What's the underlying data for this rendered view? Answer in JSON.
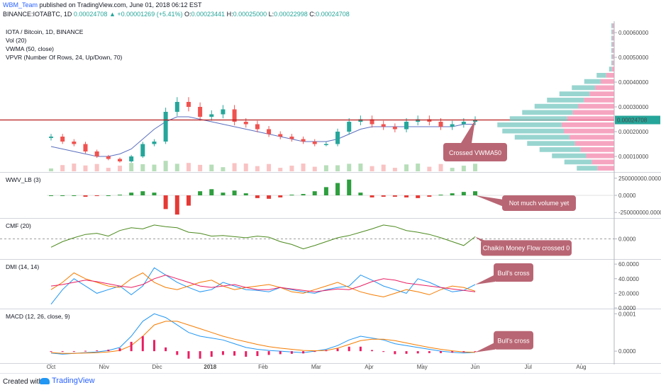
{
  "header": {
    "publisher": "WBM_Team",
    "published_text": "published on TradingView.com, June 01, 2018 06:12 EST",
    "symbol": "BINANCE:IOTABTC, 1D",
    "last_price": "0.00024708",
    "change_icon": "up-triangle-icon",
    "change": "+0.00001269 (+5.41%)",
    "open_label": "O:",
    "open": "0.00023441",
    "high_label": "H:",
    "high": "0.00025000",
    "low_label": "L:",
    "low": "0.00022998",
    "close_label": "C:",
    "close": "0.00024708"
  },
  "colors": {
    "up": "#26a69a",
    "down": "#ef5350",
    "vwma": "#5b6fbf",
    "vpvr_line": "#2e2eaa",
    "wwv_up": "#2e9e3e",
    "wwv_down": "#e53935",
    "cmf": "#4c8a1e",
    "dmi_plus": "#2196f3",
    "dmi_minus": "#f57c00",
    "adx": "#e91e63",
    "macd": "#2196f3",
    "signal": "#f57c00",
    "hist": "#e91e63",
    "callout": "#b96674",
    "price_line": "#b71c1c"
  },
  "chart_data": [
    {
      "type": "candlestick",
      "title": "IOTA / Bitcoin, 1D, BINANCE",
      "indicators": [
        "Vol (20)",
        "VWMA (50, close)",
        "VPVR (Number Of Rows, 24, Up/Down, 70)"
      ],
      "y_ticks": [
        "0.00060000",
        "0.00050000",
        "0.00040000",
        "0.00030000",
        "0.00020000",
        "0.00010000"
      ],
      "y_tick_values": [
        0.0006,
        0.0005,
        0.0004,
        0.0003,
        0.0002,
        0.0001
      ],
      "ylim": [
        4e-05,
        0.00064
      ],
      "last_price_label": "0.00024708",
      "last_price_value": 0.00024708,
      "x_labels": [
        "Oct",
        "Nov",
        "Dec",
        "2018",
        "Feb",
        "Mar",
        "Apr",
        "May",
        "Jun",
        "Jul",
        "Aug"
      ],
      "close_series": [
        0.00018,
        0.00016,
        0.00015,
        0.00012,
        0.0001,
        9e-05,
        8e-05,
        0.0001,
        0.00015,
        0.00016,
        0.00028,
        0.00032,
        0.0003,
        0.00026,
        0.00027,
        0.00029,
        0.00024,
        0.00023,
        0.00021,
        0.00019,
        0.00018,
        0.00017,
        0.00016,
        0.00015,
        0.00015,
        0.0002,
        0.00024,
        0.00025,
        0.00023,
        0.00022,
        0.00021,
        0.00024,
        0.00025,
        0.00024,
        0.00022,
        0.00023,
        0.00024,
        0.00024708
      ],
      "vwma_series": [
        0.00014,
        0.00013,
        0.00012,
        0.00011,
        0.0001,
        0.0001,
        0.00011,
        0.00013,
        0.00017,
        0.00021,
        0.00024,
        0.00026,
        0.00026,
        0.00025,
        0.00024,
        0.00023,
        0.00022,
        0.00021,
        0.0002,
        0.00019,
        0.00018,
        0.00017,
        0.00016,
        0.00016,
        0.00016,
        0.00017,
        0.00019,
        0.00021,
        0.00022,
        0.00022,
        0.00022,
        0.00022,
        0.00022,
        0.00022,
        0.00022,
        0.00022,
        0.00023,
        0.00023
      ],
      "annotation": "Crossed VWMA50"
    },
    {
      "type": "bar",
      "title": "WWV_LB (3)",
      "y_ticks": [
        "250000000.0000",
        "0.0000",
        "-250000000.0000"
      ],
      "y_tick_values": [
        250000000,
        0,
        -250000000
      ],
      "ylim": [
        -320000000,
        320000000
      ],
      "values": [
        0,
        0,
        0,
        -20000000,
        -10000000,
        0,
        10000000,
        40000000,
        60000000,
        40000000,
        -200000000,
        -280000000,
        -150000000,
        60000000,
        90000000,
        40000000,
        70000000,
        30000000,
        -40000000,
        -50000000,
        -30000000,
        10000000,
        20000000,
        60000000,
        120000000,
        180000000,
        230000000,
        40000000,
        -30000000,
        -20000000,
        -20000000,
        -30000000,
        -40000000,
        -20000000,
        10000000,
        30000000,
        50000000,
        60000000
      ],
      "annotation": "Not much volume yet"
    },
    {
      "type": "line",
      "title": "CMF (20)",
      "y_ticks": [
        "0.0000"
      ],
      "y_tick_values": [
        0
      ],
      "ylim": [
        -0.35,
        0.35
      ],
      "values": [
        -0.15,
        -0.05,
        0.02,
        0.08,
        0.1,
        0.05,
        0.15,
        0.2,
        0.18,
        0.25,
        0.22,
        0.2,
        0.12,
        0.1,
        0.05,
        0.06,
        0.04,
        0.02,
        0.05,
        0.03,
        -0.05,
        -0.1,
        -0.18,
        -0.12,
        -0.05,
        0.02,
        0.06,
        0.12,
        0.18,
        0.25,
        0.22,
        0.15,
        0.12,
        0.08,
        0.02,
        -0.05,
        -0.12,
        0.04
      ],
      "annotation": "Chaikin Money Flow crossed 0"
    },
    {
      "type": "line",
      "title": "DMI (14, 14)",
      "y_ticks": [
        "60.0000",
        "40.0000",
        "20.0000",
        "0.0000"
      ],
      "y_tick_values": [
        60,
        40,
        20,
        0
      ],
      "ylim": [
        0,
        65
      ],
      "series": [
        {
          "name": "+DI",
          "values": [
            5,
            25,
            40,
            30,
            20,
            25,
            30,
            18,
            30,
            55,
            45,
            35,
            28,
            22,
            25,
            35,
            30,
            25,
            24,
            22,
            28,
            25,
            22,
            20,
            25,
            28,
            30,
            45,
            38,
            30,
            25,
            20,
            40,
            35,
            28,
            22,
            24,
            32
          ]
        },
        {
          "name": "-DI",
          "values": [
            25,
            35,
            48,
            40,
            35,
            30,
            28,
            40,
            48,
            35,
            28,
            25,
            30,
            35,
            38,
            30,
            25,
            28,
            30,
            32,
            28,
            22,
            20,
            25,
            30,
            35,
            28,
            22,
            18,
            15,
            20,
            25,
            22,
            18,
            25,
            30,
            28,
            23
          ]
        },
        {
          "name": "ADX",
          "values": [
            30,
            32,
            35,
            38,
            36,
            33,
            30,
            28,
            32,
            40,
            45,
            40,
            35,
            30,
            28,
            30,
            32,
            28,
            25,
            25,
            28,
            26,
            24,
            22,
            24,
            26,
            25,
            30,
            36,
            40,
            38,
            34,
            32,
            30,
            28,
            26,
            24,
            22
          ]
        }
      ],
      "annotation": "Bull's cross"
    },
    {
      "type": "line",
      "title": "MACD (12, 26, close, 9)",
      "y_ticks": [
        "0.0001",
        "0.0000"
      ],
      "y_tick_values": [
        0.0001,
        0
      ],
      "ylim": [
        -3e-05,
        0.00011
      ],
      "series": [
        {
          "name": "MACD",
          "values": [
            -5e-06,
            -8e-06,
            -6e-06,
            -4e-06,
            -2e-06,
            2e-06,
            1e-05,
            4e-05,
            8e-05,
            0.0001,
            9e-05,
            7e-05,
            5e-05,
            4e-05,
            3.5e-05,
            3e-05,
            2e-05,
            1e-05,
            5e-06,
            2e-06,
            0,
            -2e-06,
            -4e-06,
            0,
            5e-06,
            1.5e-05,
            3e-05,
            4e-05,
            3.5e-05,
            3e-05,
            2e-05,
            1.5e-05,
            1e-05,
            5e-06,
            0,
            -3e-06,
            -5e-06,
            -3e-06
          ]
        },
        {
          "name": "Signal",
          "values": [
            -4e-06,
            -6e-06,
            -6e-06,
            -5e-06,
            -4e-06,
            -2e-06,
            2e-06,
            1.5e-05,
            4e-05,
            7e-05,
            8e-05,
            8e-05,
            7e-05,
            6e-05,
            5e-05,
            4e-05,
            3.2e-05,
            2.5e-05,
            1.8e-05,
            1.2e-05,
            8e-06,
            5e-06,
            2e-06,
            1e-06,
            2e-06,
            8e-06,
            1.8e-05,
            2.8e-05,
            3.2e-05,
            3.2e-05,
            2.8e-05,
            2.2e-05,
            1.6e-05,
            1e-05,
            5e-06,
            1e-06,
            -2e-06,
            -3e-06
          ]
        },
        {
          "name": "Histogram",
          "values": [
            0,
            -2e-06,
            0,
            1e-06,
            2e-06,
            4e-06,
            8e-06,
            2.5e-05,
            4e-05,
            3e-05,
            1e-05,
            -1e-05,
            -2e-05,
            -2e-05,
            -1.5e-05,
            -1e-05,
            -1.2e-05,
            -1.5e-05,
            -1.3e-05,
            -1e-05,
            -8e-06,
            -7e-06,
            -6e-06,
            -1e-06,
            3e-06,
            7e-06,
            1.2e-05,
            1.2e-05,
            3e-06,
            -2e-06,
            -8e-06,
            -7e-06,
            -6e-06,
            -5e-06,
            -5e-06,
            -4e-06,
            -3e-06,
            0
          ]
        }
      ],
      "annotation": "Bull's cross"
    }
  ],
  "footer": {
    "created_with": "Created with",
    "brand": "TradingView",
    "brand_icon": "tradingview-cloud-icon"
  }
}
